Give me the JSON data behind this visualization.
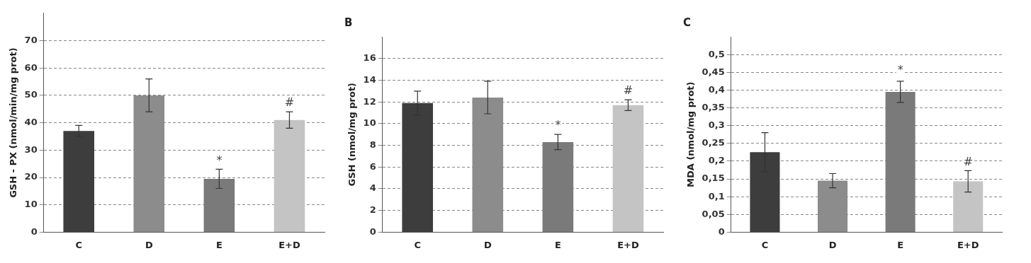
{
  "chart_data": [
    {
      "type": "bar",
      "ylabel": "GSH - PX (nmol/min/mg prot)",
      "categories": [
        "C",
        "D",
        "E",
        "E+D"
      ],
      "values": [
        37,
        50,
        19.5,
        41
      ],
      "errors": [
        2,
        6,
        3.5,
        3
      ],
      "colors": [
        "#3d3d3d",
        "#8c8c8c",
        "#7a7a7a",
        "#c4c4c4"
      ],
      "ylim": [
        0,
        80
      ],
      "yticks": [
        0,
        10,
        20,
        30,
        40,
        50,
        60,
        70
      ],
      "grid": "y",
      "annotations": [
        {
          "text": "*",
          "x": "E",
          "y": 23
        },
        {
          "text": "#",
          "x": "E+D",
          "y": 44
        }
      ]
    },
    {
      "type": "bar",
      "title": "B",
      "ylabel": "GSH (nmol/mg prot)",
      "categories": [
        "C",
        "D",
        "E",
        "E+D"
      ],
      "values": [
        11.9,
        12.4,
        8.3,
        11.7
      ],
      "errors": [
        1.1,
        1.5,
        0.7,
        0.5
      ],
      "colors": [
        "#3d3d3d",
        "#8c8c8c",
        "#7a7a7a",
        "#c4c4c4"
      ],
      "ylim": [
        0,
        18
      ],
      "yticks": [
        0,
        2,
        4,
        6,
        8,
        10,
        12,
        14,
        16
      ],
      "grid": "y",
      "annotations": [
        {
          "text": "*",
          "x": "E",
          "y": 9
        },
        {
          "text": "#",
          "x": "E+D",
          "y": 12.2
        }
      ]
    },
    {
      "type": "bar",
      "title": "C",
      "ylabel": "MDA (nmol/mg prot)",
      "categories": [
        "C",
        "D",
        "E",
        "E+D"
      ],
      "values": [
        0.225,
        0.145,
        0.395,
        0.143
      ],
      "errors": [
        0.055,
        0.02,
        0.03,
        0.03
      ],
      "colors": [
        "#3d3d3d",
        "#8c8c8c",
        "#7a7a7a",
        "#c4c4c4"
      ],
      "ylim": [
        0,
        0.55
      ],
      "yticks": [
        0,
        {
          "value": 0.05,
          "label": "0,05"
        },
        {
          "value": 0.1,
          "label": "0,1"
        },
        {
          "value": 0.15,
          "label": "0,15"
        },
        {
          "value": 0.2,
          "label": "0,2"
        },
        {
          "value": 0.25,
          "label": "0,25"
        },
        {
          "value": 0.3,
          "label": "0,3"
        },
        {
          "value": 0.35,
          "label": "0,35"
        },
        {
          "value": 0.4,
          "label": "0,4"
        },
        {
          "value": 0.45,
          "label": "0,45"
        },
        {
          "value": 0.5,
          "label": "0,5"
        }
      ],
      "grid": "y",
      "annotations": [
        {
          "text": "*",
          "x": "E",
          "y": 0.43
        },
        {
          "text": "#",
          "x": "E+D",
          "y": 0.173
        }
      ]
    }
  ]
}
